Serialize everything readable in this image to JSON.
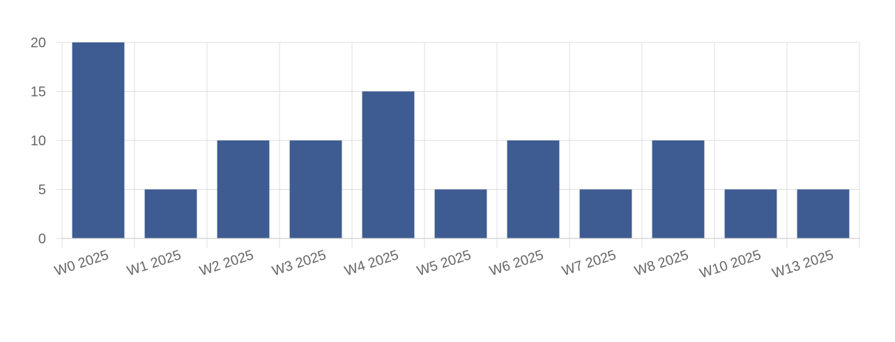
{
  "chart_data": {
    "type": "bar",
    "categories": [
      "W0 2025",
      "W1 2025",
      "W2 2025",
      "W3 2025",
      "W4 2025",
      "W5 2025",
      "W6 2025",
      "W7 2025",
      "W8 2025",
      "W10 2025",
      "W13 2025"
    ],
    "values": [
      20,
      5,
      10,
      10,
      15,
      5,
      10,
      5,
      10,
      5,
      5
    ],
    "ylim": [
      0,
      20
    ],
    "yticks": [
      0,
      5,
      10,
      15,
      20
    ],
    "grid": true,
    "legend": "none",
    "colors": {
      "bar": "#3e5c92",
      "grid": "#dcdcdc",
      "tick_text": "#666666"
    }
  }
}
